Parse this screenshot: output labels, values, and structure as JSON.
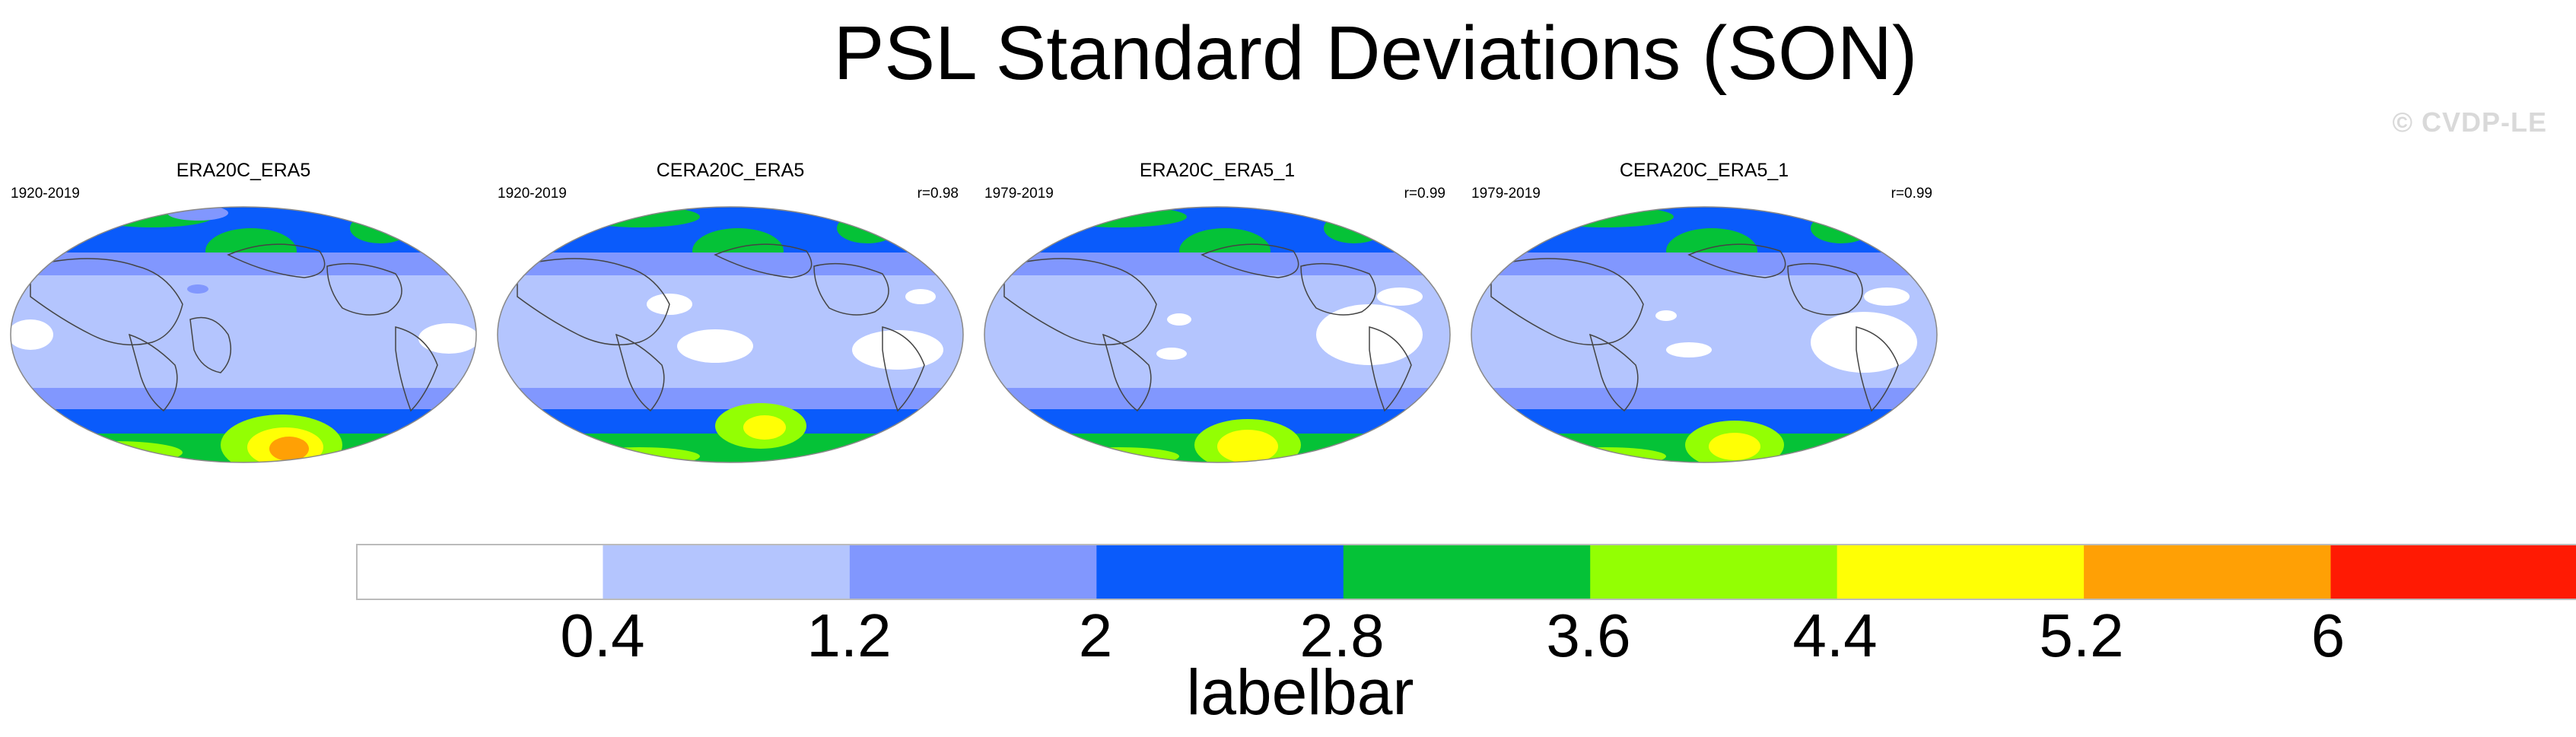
{
  "title": "PSL Standard Deviations (SON)",
  "watermark": "© CVDP-LE",
  "panels": [
    {
      "name": "ERA20C_ERA5",
      "years": "1920-2019",
      "corr": ""
    },
    {
      "name": "CERA20C_ERA5",
      "years": "1920-2019",
      "corr": "r=0.98"
    },
    {
      "name": "ERA20C_ERA5_1",
      "years": "1979-2019",
      "corr": "r=0.99"
    },
    {
      "name": "CERA20C_ERA5_1",
      "years": "1979-2019",
      "corr": "r=0.99"
    }
  ],
  "labelbar": {
    "title": "labelbar",
    "boundaries": [
      "0.4",
      "1.2",
      "2",
      "2.8",
      "3.6",
      "4.4",
      "5.2",
      "6"
    ],
    "colors": [
      "#ffffff",
      "#b4c5fe",
      "#8197fe",
      "#0a5bfb",
      "#05c237",
      "#93ff03",
      "#ffff05",
      "#ffa005",
      "#ff1a03"
    ]
  }
}
